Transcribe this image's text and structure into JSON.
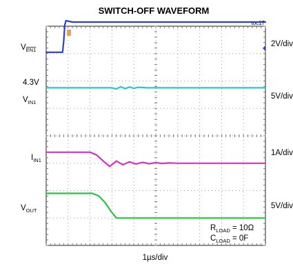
{
  "chart_data": {
    "type": "line",
    "title": "SWITCH-OFF WAVEFORM",
    "figure_id": "toc17",
    "xlabel": "1µs/div",
    "grid": true,
    "divisions": {
      "x": 10,
      "y": 8
    },
    "x": [
      0,
      0.7,
      0.8,
      0.9,
      1,
      2,
      3,
      4,
      5,
      6,
      7,
      8,
      9,
      10
    ],
    "series": [
      {
        "id": "ven1",
        "name": "VEN1",
        "label_main": "V",
        "label_sub": "EN1",
        "scale": "2V/div",
        "color": "#2a3fd0",
        "x": [
          0,
          0.75,
          0.8,
          0.85,
          0.9,
          1.2,
          2,
          4,
          6,
          8,
          10
        ],
        "y": [
          -0.6,
          -0.6,
          -0.2,
          0.4,
          0.55,
          0.5,
          0.5,
          0.5,
          0.5,
          0.5,
          0.5
        ]
      },
      {
        "id": "vin1",
        "name": "VIN1",
        "label_main": "V",
        "label_sub": "IN1",
        "scale": "5V/div",
        "level_label": "4.3V",
        "color": "#22c8d8",
        "x": [
          0,
          2,
          3,
          3.2,
          3.4,
          3.6,
          3.8,
          4.0,
          4.2,
          4.6,
          5,
          6,
          8,
          10
        ],
        "y": [
          0,
          0,
          0,
          -0.04,
          0.04,
          -0.03,
          0.03,
          -0.02,
          0.02,
          0,
          0,
          0,
          0,
          0
        ]
      },
      {
        "id": "iin1",
        "name": "IIN1",
        "label_main": "I",
        "label_sub": "IN1",
        "scale": "1A/div",
        "color": "#d830c8",
        "x": [
          0,
          2.0,
          2.3,
          2.6,
          2.9,
          3.2,
          3.5,
          3.8,
          4.1,
          4.4,
          4.7,
          5.0,
          5.3,
          5.6,
          6,
          7,
          8,
          10
        ],
        "y": [
          0,
          0,
          -0.1,
          -0.32,
          -0.52,
          -0.32,
          -0.46,
          -0.35,
          -0.43,
          -0.37,
          -0.42,
          -0.38,
          -0.41,
          -0.39,
          -0.4,
          -0.4,
          -0.4,
          -0.4
        ]
      },
      {
        "id": "vout",
        "name": "VOUT",
        "label_main": "V",
        "label_sub": "OUT",
        "scale": "5V/div",
        "color": "#22c83a",
        "x": [
          0,
          2.1,
          2.4,
          2.7,
          2.95,
          3.2,
          4,
          6,
          8,
          10
        ],
        "y": [
          0,
          0,
          -0.1,
          -0.35,
          -0.65,
          -0.9,
          -0.9,
          -0.9,
          -0.9,
          -0.9
        ]
      }
    ],
    "annotations": [
      {
        "main": "R",
        "sub": "LOAD",
        "rest": " = 10Ω"
      },
      {
        "main": "C",
        "sub": "LOAD",
        "rest": " = 0F"
      }
    ]
  }
}
